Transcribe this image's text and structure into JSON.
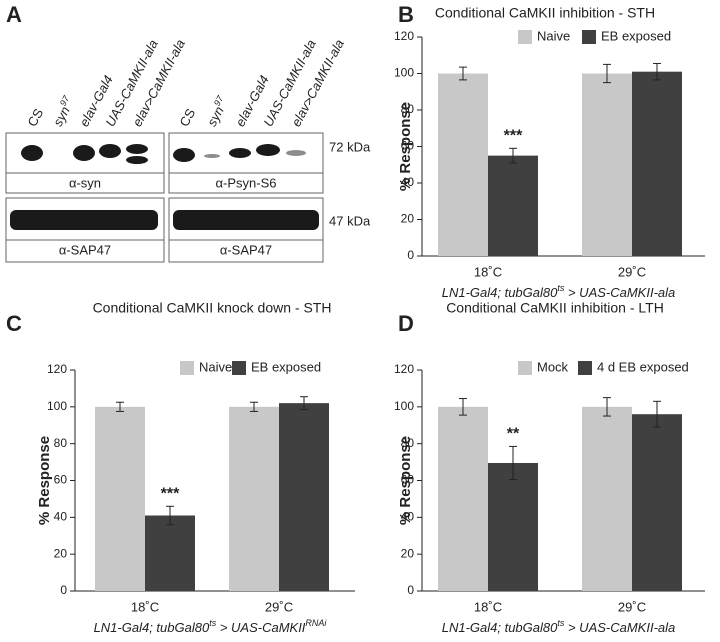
{
  "blot": {
    "panel_label": "A",
    "lanes_left": [
      "CS",
      [
        "syn",
        "97"
      ],
      "elav-Gal4",
      "UAS-CaMKII-ala",
      "elav>CaMKII-ala"
    ],
    "lanes_right": [
      "CS",
      [
        "syn",
        "97"
      ],
      "elav-Gal4",
      "UAS-CaMKII-ala",
      "elav>CaMKII-ala"
    ],
    "antibodies": [
      "α-syn",
      "α-SAP47",
      "α-Psyn-S6",
      "α-SAP47"
    ],
    "markers": [
      "72 kDa",
      "47 kDa"
    ]
  },
  "chart_data": [
    {
      "type": "bar",
      "panel_label": "B",
      "title": "Conditional CaMKII inhibition - STH",
      "ylabel": "% Response",
      "xlabel": [
        "LN1-Gal4; tubGal80",
        "ts",
        " > UAS-CaMKII-ala"
      ],
      "categories": [
        "18˚C",
        "29˚C"
      ],
      "series": [
        {
          "name": "Naive",
          "color": "#c8c8c8",
          "values": [
            100,
            100
          ],
          "errors": [
            3.5,
            5
          ],
          "significance": [
            null,
            null
          ]
        },
        {
          "name": "EB exposed",
          "color": "#404040",
          "values": [
            55,
            101
          ],
          "errors": [
            4,
            4.5
          ],
          "significance": [
            "***",
            null
          ]
        }
      ],
      "ylim": [
        0,
        120
      ],
      "yticks": [
        0,
        20,
        40,
        60,
        80,
        100,
        120
      ]
    },
    {
      "type": "bar",
      "panel_label": "C",
      "title": "Conditional CaMKII knock down - STH",
      "ylabel": "% Response",
      "xlabel": [
        "LN1-Gal4; tubGal80",
        "ts",
        " > UAS-CaMKII",
        "RNAi"
      ],
      "categories": [
        "18˚C",
        "29˚C"
      ],
      "series": [
        {
          "name": "Naive",
          "color": "#c8c8c8",
          "values": [
            100,
            100
          ],
          "errors": [
            2.5,
            2.5
          ],
          "significance": [
            null,
            null
          ]
        },
        {
          "name": "EB exposed",
          "color": "#404040",
          "values": [
            41,
            102
          ],
          "errors": [
            5,
            3.5
          ],
          "significance": [
            "***",
            null
          ]
        }
      ],
      "ylim": [
        0,
        120
      ],
      "yticks": [
        0,
        20,
        40,
        60,
        80,
        100,
        120
      ]
    },
    {
      "type": "bar",
      "panel_label": "D",
      "title": "Conditional CaMKII inhibition - LTH",
      "ylabel": "% Response",
      "xlabel": [
        "LN1-Gal4; tubGal80",
        "ts",
        " > UAS-CaMKII-ala"
      ],
      "categories": [
        "18˚C",
        "29˚C"
      ],
      "series": [
        {
          "name": "Mock",
          "color": "#c8c8c8",
          "values": [
            100,
            100
          ],
          "errors": [
            4.5,
            5
          ],
          "significance": [
            null,
            null
          ]
        },
        {
          "name": "4 d EB exposed",
          "color": "#404040",
          "values": [
            69.5,
            96
          ],
          "errors": [
            9,
            7
          ],
          "significance": [
            "**",
            null
          ]
        }
      ],
      "ylim": [
        0,
        120
      ],
      "yticks": [
        0,
        20,
        40,
        60,
        80,
        100,
        120
      ]
    }
  ]
}
